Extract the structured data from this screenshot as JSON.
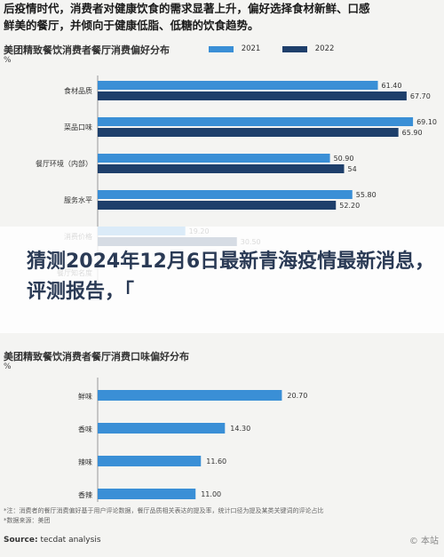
{
  "article": {
    "lines": [
      "后疫情时代，消费者对健康饮食的需求显著上升，偏好选择食材新鲜、口感",
      "鲜美的餐厅，并倾向于健康低脂、低糖的饮食趋势。"
    ]
  },
  "overlay": {
    "title": "猜测2024年12月6日最新青海疫情最新消息，评测报告，「"
  },
  "chart1_meta": {
    "title": "美团精致餐饮消费者餐厅消费偏好分布",
    "unit": "%"
  },
  "chart2_meta": {
    "title": "美团精致餐饮消费者餐厅消费口味偏好分布",
    "unit": "%"
  },
  "colors": {
    "c2021": "#3a8fd6",
    "c2022": "#1e3f6b",
    "single": "#3a8fd6"
  },
  "chart_data": [
    {
      "type": "bar",
      "orientation": "horizontal",
      "title": "美团精致餐饮消费者餐厅消费偏好分布",
      "ylabel": "%",
      "categories": [
        "食材品质",
        "菜品口味",
        "餐厅环境（内部）",
        "服务水平",
        "消费价格",
        "餐厅知名度"
      ],
      "series": [
        {
          "name": "2021",
          "values": [
            61.4,
            69.1,
            50.9,
            55.8,
            19.2,
            null
          ]
        },
        {
          "name": "2022",
          "values": [
            67.7,
            65.9,
            54,
            52.2,
            30.5,
            null
          ]
        }
      ],
      "data_labels": [
        [
          "61.40",
          "69.10",
          "50.90",
          "55.80",
          "19.20",
          ""
        ],
        [
          "67.70",
          "65.90",
          "54",
          "52.20",
          "30.50",
          ""
        ]
      ],
      "xlim": [
        0,
        72
      ],
      "legend": "top"
    },
    {
      "type": "bar",
      "orientation": "horizontal",
      "title": "美团精致餐饮消费者餐厅消费口味偏好分布",
      "ylabel": "%",
      "categories": [
        "鲜味",
        "香味",
        "辣味",
        "香辣"
      ],
      "values": [
        20.7,
        14.3,
        11.6,
        11.0
      ],
      "data_labels": [
        "20.70",
        "14.30",
        "11.60",
        "11.00"
      ],
      "xlim": [
        0,
        72
      ]
    }
  ],
  "footnote": {
    "text": "*注：消费者的餐厅消费偏好基于用户评论数据，餐厅品质相关表达的提及率，统计口径为提及某类关键词的评论占比",
    "text2": "*数据来源：美团"
  },
  "source": {
    "label": "Source:",
    "value": "tecdat analysis"
  },
  "watermark": "© 本站"
}
